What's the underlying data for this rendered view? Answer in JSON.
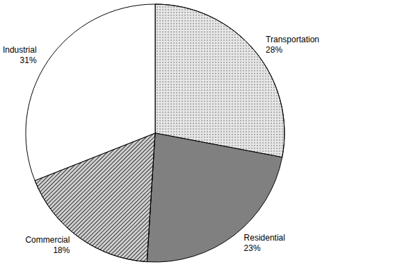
{
  "chart_data": {
    "type": "pie",
    "categories": [
      "Transportation",
      "Residential",
      "Commercial",
      "Industrial"
    ],
    "values": [
      28,
      23,
      18,
      31
    ],
    "value_labels": [
      "28%",
      "23%",
      "18%",
      "31%"
    ],
    "colors": [
      "#e6e6e6",
      "#808080",
      "#d0d0d0",
      "#ffffff"
    ],
    "data_labels": true
  }
}
